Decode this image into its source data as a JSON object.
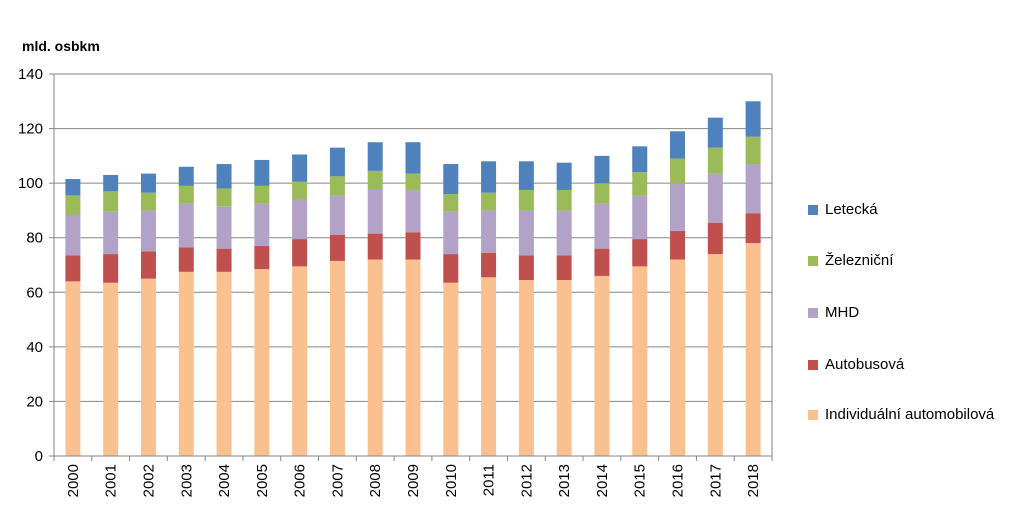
{
  "chart_data": {
    "type": "bar",
    "stacked": true,
    "title": "",
    "xlabel": "",
    "ylabel": "mld. osbkm",
    "ylim": [
      0,
      140
    ],
    "yticks": [
      0,
      20,
      40,
      60,
      80,
      100,
      120,
      140
    ],
    "grid": true,
    "legend_position": "right",
    "categories": [
      "2000",
      "2001",
      "2002",
      "2003",
      "2004",
      "2005",
      "2006",
      "2007",
      "2008",
      "2009",
      "2010",
      "2011",
      "2012",
      "2013",
      "2014",
      "2015",
      "2016",
      "2017",
      "2018"
    ],
    "series": [
      {
        "name": "Individuální automobilová",
        "color": "#FAC090",
        "values": [
          64,
          63.5,
          65,
          67.5,
          67.5,
          68.5,
          69.5,
          71.5,
          72,
          72,
          63.5,
          65.5,
          64.5,
          64.5,
          66,
          69.5,
          72,
          74,
          78
        ]
      },
      {
        "name": "Autobusová",
        "color": "#C0504D",
        "values": [
          9.5,
          10.5,
          10,
          9,
          8.5,
          8.5,
          10,
          9.5,
          9.5,
          10,
          10.5,
          9,
          9,
          9,
          10,
          10,
          10.5,
          11.5,
          11
        ]
      },
      {
        "name": "MHD",
        "color": "#B3A2C7",
        "values": [
          15,
          15.5,
          15,
          16,
          15.5,
          15.5,
          14.5,
          14.5,
          16,
          15.5,
          15.5,
          15.5,
          16.5,
          16.5,
          16.5,
          16,
          17.5,
          18,
          18
        ]
      },
      {
        "name": "Železniční",
        "color": "#9BBB59",
        "values": [
          7,
          7.5,
          6.5,
          6.5,
          6.5,
          6.5,
          6.5,
          7,
          7,
          6,
          6.5,
          6.5,
          7.5,
          7.5,
          7.5,
          8.5,
          9,
          9.5,
          10
        ]
      },
      {
        "name": "Letecká",
        "color": "#4F81BD",
        "values": [
          6,
          6,
          7,
          7,
          9,
          9.5,
          10,
          10.5,
          10.5,
          11.5,
          11,
          11.5,
          10.5,
          10,
          10,
          9.5,
          10,
          11,
          13
        ]
      }
    ],
    "legend_order": [
      "Letecká",
      "Železniční",
      "MHD",
      "Autobusová",
      "Individuální automobilová"
    ]
  }
}
